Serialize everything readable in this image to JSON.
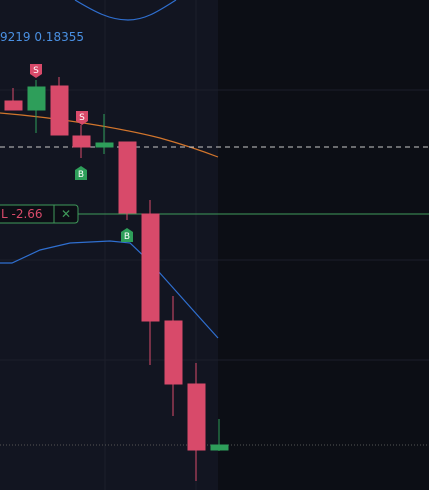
{
  "legend": {
    "values": "9219 0.18355"
  },
  "order_line": {
    "label": "L -2.66",
    "close": "✕"
  },
  "markers": [
    {
      "label": "S"
    },
    {
      "label": "S"
    },
    {
      "label": "B"
    },
    {
      "label": "B"
    }
  ]
}
